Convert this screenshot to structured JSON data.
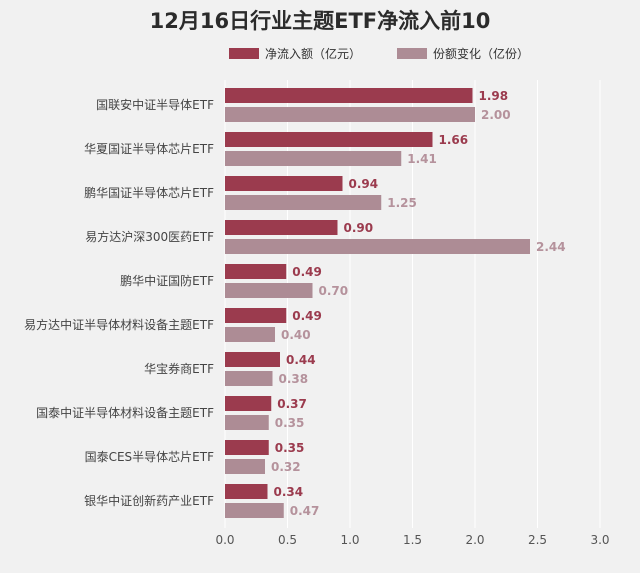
{
  "chart_data": {
    "type": "bar",
    "orientation": "horizontal",
    "title": "12月16日行业主题ETF净流入前10",
    "categories": [
      "国联安中证半导体ETF",
      "华夏国证半导体芯片ETF",
      "鹏华国证半导体芯片ETF",
      "易方达沪深300医药ETF",
      "鹏华中证国防ETF",
      "易方达中证半导体材料设备主题ETF",
      "华宝券商ETF",
      "国泰中证半导体材料设备主题ETF",
      "国泰CES半导体芯片ETF",
      "银华中证创新药产业ETF"
    ],
    "series": [
      {
        "name": "净流入额（亿元）",
        "color": "#9b3b4e",
        "values": [
          1.98,
          1.66,
          0.94,
          0.9,
          0.49,
          0.49,
          0.44,
          0.37,
          0.35,
          0.34
        ],
        "labels": [
          "1.98",
          "1.66",
          "0.94",
          "0.90",
          "0.49",
          "0.49",
          "0.44",
          "0.37",
          "0.35",
          "0.34"
        ]
      },
      {
        "name": "份额变化（亿份）",
        "color": "#ad8c95",
        "values": [
          2.0,
          1.41,
          1.25,
          2.44,
          0.7,
          0.4,
          0.38,
          0.35,
          0.32,
          0.47
        ],
        "labels": [
          "2.00",
          "1.41",
          "1.25",
          "2.44",
          "0.70",
          "0.40",
          "0.38",
          "0.35",
          "0.32",
          "0.47"
        ]
      }
    ],
    "xlim": [
      0,
      3.0
    ],
    "xticks": [
      "0.0",
      "0.5",
      "1.0",
      "1.5",
      "2.0",
      "2.5",
      "3.0"
    ],
    "grid": true,
    "legend_position": "top"
  }
}
